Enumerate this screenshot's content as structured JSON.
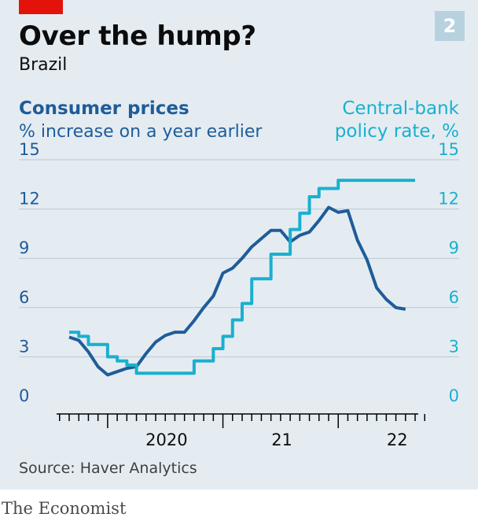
{
  "header": {
    "title": "Over the hump?",
    "subtitle": "Brazil",
    "chart_number": "2"
  },
  "legend": {
    "left_series": "Consumer prices",
    "left_unit": "% increase on a year earlier",
    "right_series_line1": "Central-bank",
    "right_series_line2": "policy rate, %"
  },
  "source": "Source: Haver Analytics",
  "brand": "The Economist",
  "colors": {
    "background": "#e4ecf2",
    "consumer_prices": "#1f5c99",
    "policy_rate": "#1ab0cf",
    "accent_red": "#e3120b"
  },
  "chart_data": {
    "type": "line",
    "title": "Over the hump?",
    "subtitle": "Brazil",
    "ylim": [
      0,
      15
    ],
    "y_ticks": [
      "0",
      "3",
      "6",
      "9",
      "12",
      "15"
    ],
    "x_range": [
      "2019-09",
      "2022-09"
    ],
    "x_tick_labels": [
      {
        "date": "2020-01",
        "label": "2020"
      },
      {
        "date": "2021-01",
        "label": "21"
      },
      {
        "date": "2022-01",
        "label": "22"
      }
    ],
    "grid": true,
    "series": [
      {
        "name": "Consumer prices",
        "axis": "left",
        "color": "#1f5c99",
        "points": [
          [
            "2019-09",
            4.2
          ],
          [
            "2019-10",
            4.0
          ],
          [
            "2019-11",
            3.3
          ],
          [
            "2019-12",
            2.4
          ],
          [
            "2020-01",
            1.9
          ],
          [
            "2020-02",
            2.1
          ],
          [
            "2020-03",
            2.3
          ],
          [
            "2020-04",
            2.4
          ],
          [
            "2020-05",
            3.2
          ],
          [
            "2020-06",
            3.9
          ],
          [
            "2020-07",
            4.3
          ],
          [
            "2020-08",
            4.5
          ],
          [
            "2020-09",
            4.5
          ],
          [
            "2020-10",
            5.2
          ],
          [
            "2020-11",
            6.0
          ],
          [
            "2020-12",
            6.7
          ],
          [
            "2021-01",
            8.1
          ],
          [
            "2021-02",
            8.4
          ],
          [
            "2021-03",
            9.0
          ],
          [
            "2021-04",
            9.7
          ],
          [
            "2021-05",
            10.2
          ],
          [
            "2021-06",
            10.7
          ],
          [
            "2021-07",
            10.7
          ],
          [
            "2021-08",
            10.0
          ],
          [
            "2021-09",
            10.4
          ],
          [
            "2021-10",
            10.6
          ],
          [
            "2021-11",
            11.3
          ],
          [
            "2021-12",
            12.1
          ],
          [
            "2022-01",
            11.8
          ],
          [
            "2022-02",
            11.9
          ],
          [
            "2022-03",
            10.1
          ],
          [
            "2022-04",
            8.9
          ],
          [
            "2022-05",
            7.2
          ],
          [
            "2022-06",
            6.5
          ],
          [
            "2022-07",
            6.0
          ],
          [
            "2022-08",
            5.9
          ]
        ]
      },
      {
        "name": "Central-bank policy rate, %",
        "axis": "right",
        "color": "#1ab0cf",
        "step": true,
        "points": [
          [
            "2019-09",
            4.5
          ],
          [
            "2019-10",
            4.25
          ],
          [
            "2019-11",
            3.75
          ],
          [
            "2019-12",
            3.75
          ],
          [
            "2020-01",
            3.0
          ],
          [
            "2020-02",
            2.75
          ],
          [
            "2020-03",
            2.5
          ],
          [
            "2020-04",
            2.0
          ],
          [
            "2020-05",
            2.0
          ],
          [
            "2020-06",
            2.0
          ],
          [
            "2020-07",
            2.0
          ],
          [
            "2020-08",
            2.0
          ],
          [
            "2020-09",
            2.0
          ],
          [
            "2020-10",
            2.75
          ],
          [
            "2020-11",
            2.75
          ],
          [
            "2020-12",
            3.5
          ],
          [
            "2021-01",
            4.25
          ],
          [
            "2021-02",
            5.25
          ],
          [
            "2021-03",
            6.25
          ],
          [
            "2021-04",
            7.75
          ],
          [
            "2021-05",
            7.75
          ],
          [
            "2021-06",
            9.25
          ],
          [
            "2021-07",
            9.25
          ],
          [
            "2021-08",
            10.75
          ],
          [
            "2021-09",
            11.75
          ],
          [
            "2021-10",
            12.75
          ],
          [
            "2021-11",
            13.25
          ],
          [
            "2021-12",
            13.25
          ],
          [
            "2022-01",
            13.75
          ],
          [
            "2022-02",
            13.75
          ],
          [
            "2022-03",
            13.75
          ],
          [
            "2022-04",
            13.75
          ],
          [
            "2022-05",
            13.75
          ],
          [
            "2022-06",
            13.75
          ],
          [
            "2022-07",
            13.75
          ],
          [
            "2022-08",
            13.75
          ]
        ]
      }
    ]
  }
}
